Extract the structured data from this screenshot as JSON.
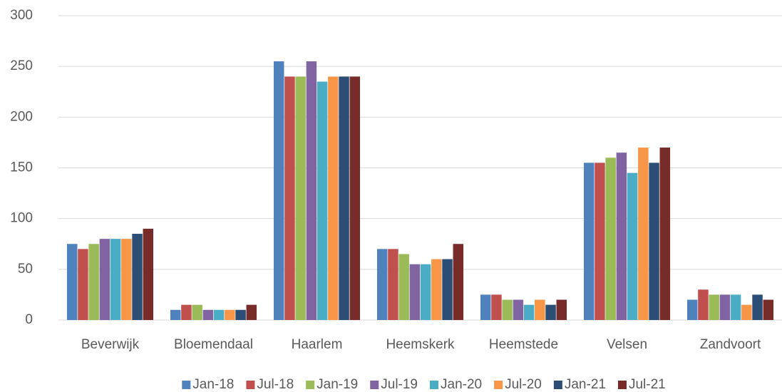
{
  "chart_data": {
    "type": "bar",
    "categories": [
      "Beverwijk",
      "Bloemendaal",
      "Haarlem",
      "Heemskerk",
      "Heemstede",
      "Velsen",
      "Zandvoort"
    ],
    "series": [
      {
        "name": "Jan-18",
        "color": "#4f81bd",
        "values": [
          75,
          10,
          255,
          70,
          25,
          155,
          20
        ]
      },
      {
        "name": "Jul-18",
        "color": "#c0504d",
        "values": [
          70,
          15,
          240,
          70,
          25,
          155,
          30
        ]
      },
      {
        "name": "Jan-19",
        "color": "#9bbb59",
        "values": [
          75,
          15,
          240,
          65,
          20,
          160,
          25
        ]
      },
      {
        "name": "Jul-19",
        "color": "#8064a2",
        "values": [
          80,
          10,
          255,
          55,
          20,
          165,
          25
        ]
      },
      {
        "name": "Jan-20",
        "color": "#4bacc6",
        "values": [
          80,
          10,
          235,
          55,
          15,
          145,
          25
        ]
      },
      {
        "name": "Jul-20",
        "color": "#f79646",
        "values": [
          80,
          10,
          240,
          60,
          20,
          170,
          15
        ]
      },
      {
        "name": "Jan-21",
        "color": "#2c4d75",
        "values": [
          85,
          10,
          240,
          60,
          15,
          155,
          25
        ]
      },
      {
        "name": "Jul-21",
        "color": "#772c2a",
        "values": [
          90,
          15,
          240,
          75,
          20,
          170,
          20
        ]
      }
    ],
    "ylim": [
      0,
      300
    ],
    "yticks": [
      0,
      50,
      100,
      150,
      200,
      250,
      300
    ],
    "grid": true,
    "legend": "bottom"
  }
}
